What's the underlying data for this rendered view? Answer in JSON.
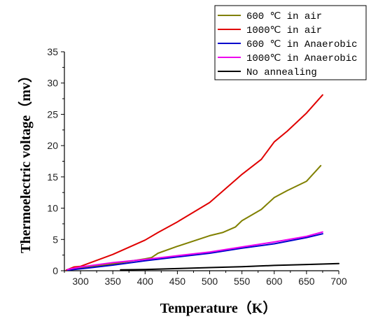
{
  "chart_data": {
    "type": "line",
    "xlabel": "Temperature（K）",
    "ylabel": "Thermoelectric voltage（mv）",
    "xlim": [
      275,
      700
    ],
    "ylim": [
      0,
      35
    ],
    "xticks": [
      300,
      350,
      400,
      450,
      500,
      550,
      600,
      650,
      700
    ],
    "yticks": [
      0,
      5,
      10,
      15,
      20,
      25,
      30,
      35
    ],
    "grid": false,
    "legend_position": "top-right",
    "series": [
      {
        "name": "600 ℃ in air",
        "color": "#808000",
        "x": [
          280,
          300,
          350,
          400,
          410,
          420,
          450,
          500,
          520,
          540,
          550,
          580,
          600,
          620,
          650,
          672
        ],
        "y": [
          0.1,
          0.4,
          1.1,
          1.9,
          2.1,
          2.8,
          3.9,
          5.6,
          6.1,
          7.0,
          8.0,
          9.8,
          11.7,
          12.8,
          14.3,
          16.8
        ]
      },
      {
        "name": "1000℃ in air",
        "color": "#e00000",
        "x": [
          278,
          290,
          300,
          350,
          400,
          420,
          450,
          500,
          520,
          550,
          580,
          600,
          620,
          650,
          675
        ],
        "y": [
          0.1,
          0.6,
          0.7,
          2.6,
          4.9,
          6.1,
          7.8,
          10.9,
          12.7,
          15.4,
          17.8,
          20.6,
          22.3,
          25.2,
          28.1
        ]
      },
      {
        "name": "600 ℃ in Anaerobic",
        "color": "#0000cc",
        "x": [
          280,
          300,
          350,
          400,
          450,
          500,
          550,
          600,
          650,
          675
        ],
        "y": [
          0.1,
          0.3,
          0.9,
          1.6,
          2.2,
          2.8,
          3.6,
          4.3,
          5.3,
          5.9
        ]
      },
      {
        "name": "1000℃ in Anaerobic",
        "color": "#ee00ee",
        "x": [
          280,
          300,
          350,
          400,
          450,
          500,
          550,
          600,
          650,
          675
        ],
        "y": [
          0.2,
          0.6,
          1.3,
          1.8,
          2.4,
          3.0,
          3.8,
          4.6,
          5.5,
          6.2
        ]
      },
      {
        "name": "No annealing",
        "color": "#000000",
        "x": [
          362,
          400,
          450,
          500,
          550,
          600,
          650,
          700
        ],
        "y": [
          0.15,
          0.2,
          0.35,
          0.5,
          0.65,
          0.85,
          1.0,
          1.15
        ]
      }
    ]
  }
}
